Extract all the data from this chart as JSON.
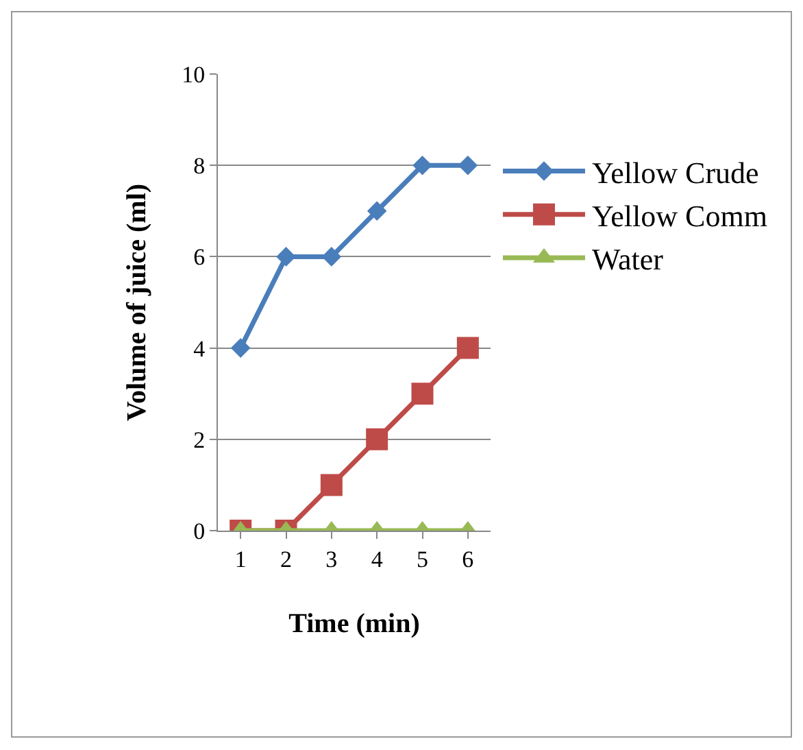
{
  "chart_data": {
    "type": "line",
    "xlabel": "Time (min)",
    "ylabel": "Volume of juice (ml)",
    "categories": [
      "1",
      "2",
      "3",
      "4",
      "5",
      "6"
    ],
    "series": [
      {
        "name": "Yellow Crude",
        "color": "#4a7ebb",
        "marker": "diamond",
        "values": [
          4,
          6,
          6,
          7,
          8,
          8
        ]
      },
      {
        "name": "Yellow Comm",
        "color": "#be4b48",
        "marker": "square",
        "values": [
          0,
          0,
          1,
          2,
          3,
          4
        ]
      },
      {
        "name": "Water",
        "color": "#98b954",
        "marker": "triangle",
        "values": [
          0,
          0,
          0,
          0,
          0,
          0
        ]
      }
    ],
    "ylim": [
      0,
      10
    ],
    "yticks": [
      0,
      2,
      4,
      6,
      8,
      10
    ],
    "grid": "y",
    "legend": "right",
    "line_style": "solid"
  }
}
